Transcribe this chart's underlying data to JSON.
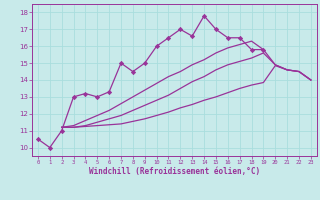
{
  "title": "",
  "xlabel": "Windchill (Refroidissement éolien,°C)",
  "bg_color": "#c8eaea",
  "line_color": "#993399",
  "grid_color": "#aadddd",
  "xlim": [
    -0.5,
    23.5
  ],
  "ylim": [
    9.5,
    18.5
  ],
  "xticks": [
    0,
    1,
    2,
    3,
    4,
    5,
    6,
    7,
    8,
    9,
    10,
    11,
    12,
    13,
    14,
    15,
    16,
    17,
    18,
    19,
    20,
    21,
    22,
    23
  ],
  "yticks": [
    10,
    11,
    12,
    13,
    14,
    15,
    16,
    17,
    18
  ],
  "series": [
    {
      "x": [
        0,
        1,
        2,
        3,
        4,
        5,
        6,
        7,
        8,
        9,
        10,
        11,
        12,
        13,
        14,
        15,
        16,
        17,
        18,
        19
      ],
      "y": [
        10.5,
        10.0,
        11.0,
        13.0,
        13.2,
        13.0,
        13.3,
        15.0,
        14.5,
        15.0,
        16.0,
        16.5,
        17.0,
        16.6,
        17.8,
        17.0,
        16.5,
        16.5,
        15.8,
        15.8
      ],
      "marker": "D",
      "ms": 2.2,
      "lw": 0.9
    },
    {
      "x": [
        2,
        3,
        4,
        5,
        6,
        7,
        8,
        9,
        10,
        11,
        12,
        13,
        14,
        15,
        16,
        17,
        18,
        19,
        20,
        21,
        22,
        23
      ],
      "y": [
        11.2,
        11.2,
        11.25,
        11.3,
        11.35,
        11.4,
        11.55,
        11.7,
        11.9,
        12.1,
        12.35,
        12.55,
        12.8,
        13.0,
        13.25,
        13.5,
        13.7,
        13.85,
        14.85,
        14.6,
        14.5,
        14.0
      ],
      "marker": null,
      "ms": 0,
      "lw": 0.9
    },
    {
      "x": [
        2,
        3,
        4,
        5,
        6,
        7,
        8,
        9,
        10,
        11,
        12,
        13,
        14,
        15,
        16,
        17,
        18,
        19,
        20,
        21,
        22,
        23
      ],
      "y": [
        11.2,
        11.2,
        11.3,
        11.5,
        11.7,
        11.9,
        12.2,
        12.5,
        12.8,
        13.1,
        13.5,
        13.9,
        14.2,
        14.6,
        14.9,
        15.1,
        15.3,
        15.6,
        14.9,
        14.6,
        14.5,
        14.0
      ],
      "marker": null,
      "ms": 0,
      "lw": 0.9
    },
    {
      "x": [
        2,
        3,
        4,
        5,
        6,
        7,
        8,
        9,
        10,
        11,
        12,
        13,
        14,
        15,
        16,
        17,
        18,
        19,
        20,
        21,
        22,
        23
      ],
      "y": [
        11.2,
        11.3,
        11.6,
        11.9,
        12.2,
        12.6,
        13.0,
        13.4,
        13.8,
        14.2,
        14.5,
        14.9,
        15.2,
        15.6,
        15.9,
        16.1,
        16.3,
        15.8,
        14.9,
        14.6,
        14.5,
        14.0
      ],
      "marker": null,
      "ms": 0,
      "lw": 0.9
    }
  ]
}
